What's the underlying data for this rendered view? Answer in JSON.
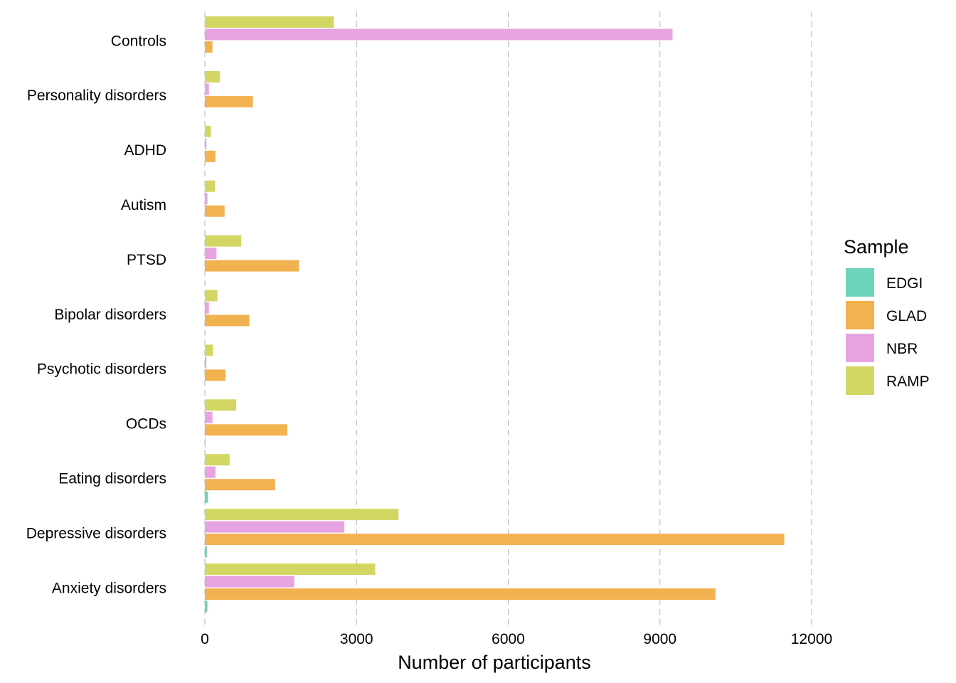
{
  "chart_data": {
    "type": "bar",
    "orientation": "horizontal",
    "categories": [
      "Controls",
      "Personality disorders",
      "ADHD",
      "Autism",
      "PTSD",
      "Bipolar disorders",
      "Psychotic disorders",
      "OCDs",
      "Eating disorders",
      "Depressive disorders",
      "Anxiety disorders"
    ],
    "series": [
      {
        "name": "EDGI",
        "color": "#6dd3bb",
        "values": [
          0,
          0,
          0,
          0,
          0,
          0,
          0,
          10,
          60,
          40,
          50
        ]
      },
      {
        "name": "GLAD",
        "color": "#f2b24f",
        "values": [
          150,
          950,
          210,
          390,
          1860,
          880,
          410,
          1630,
          1390,
          11460,
          10100
        ]
      },
      {
        "name": "NBR",
        "color": "#e8a3e2",
        "values": [
          9250,
          80,
          30,
          50,
          230,
          80,
          30,
          150,
          210,
          2760,
          1770
        ]
      },
      {
        "name": "RAMP",
        "color": "#d4d663",
        "values": [
          2550,
          300,
          120,
          200,
          720,
          250,
          160,
          620,
          490,
          3830,
          3370
        ]
      }
    ],
    "xlabel": "Number of participants",
    "ylabel": "",
    "xlim": [
      0,
      12000
    ],
    "x_ticks": [
      "0",
      "3000",
      "6000",
      "9000",
      "12000"
    ],
    "x_tick_values": [
      0,
      3000,
      6000,
      9000,
      12000
    ],
    "grid": "vertical dashed major gridlines",
    "legend": {
      "title": "Sample",
      "position": "right"
    }
  }
}
